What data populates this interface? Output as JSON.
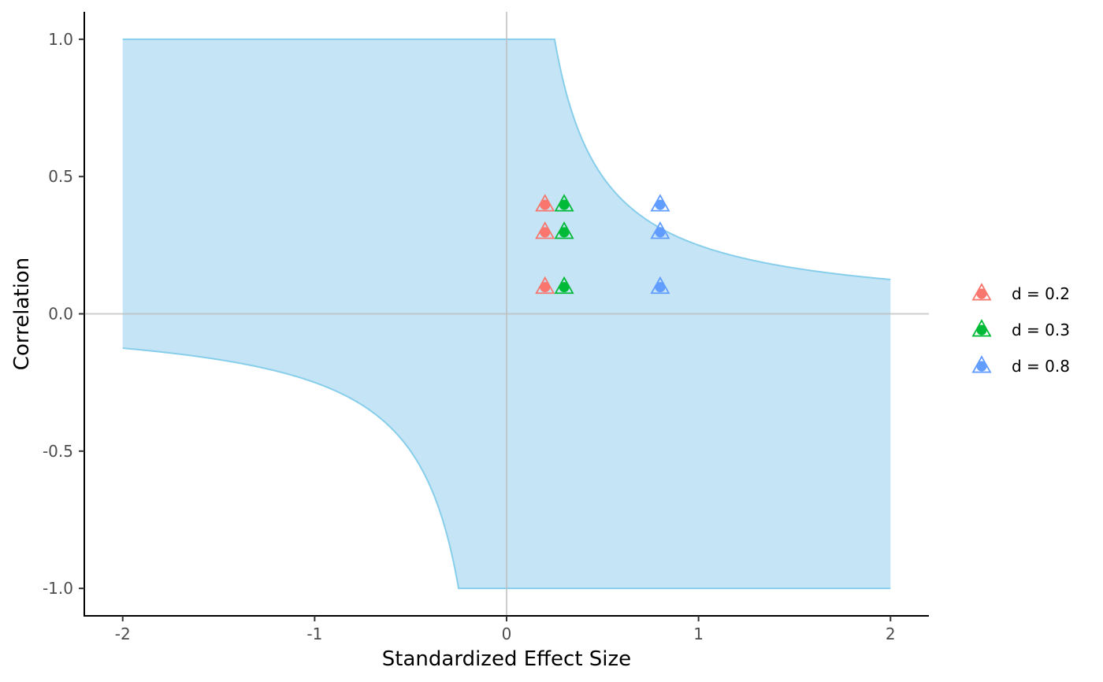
{
  "chart_data": {
    "type": "scatter",
    "xlabel": "Standardized Effect Size",
    "ylabel": "Correlation",
    "xlim": [
      -2.2,
      2.2
    ],
    "ylim": [
      -1.1,
      1.1
    ],
    "x_ticks": [
      -2,
      -1,
      0,
      1,
      2
    ],
    "x_tick_labels": [
      "-2",
      "-1",
      "0",
      "1",
      "2"
    ],
    "y_ticks": [
      -1.0,
      -0.5,
      0.0,
      0.5,
      1.0
    ],
    "y_tick_labels": [
      "-1.0",
      "-0.5",
      "0.0",
      "0.5",
      "1.0"
    ],
    "grid": false,
    "reference_lines": {
      "x": 0,
      "y": 0
    },
    "region": {
      "description": "shaded admissible region bounded by correlation = ±1 and curves r = ±1/(4d)",
      "x_range": [
        -2,
        2
      ],
      "fill_color": "#c5e4f5",
      "line_color": "#87ceeb"
    },
    "legend": {
      "position": "right",
      "entries": [
        "d = 0.2",
        "d = 0.3",
        "d = 0.8"
      ]
    },
    "series": [
      {
        "name": "d = 0.2",
        "color": "#f8766d",
        "x": [
          0.2,
          0.2,
          0.2
        ],
        "y": [
          0.1,
          0.3,
          0.4
        ]
      },
      {
        "name": "d = 0.3",
        "color": "#00ba38",
        "x": [
          0.3,
          0.3,
          0.3
        ],
        "y": [
          0.1,
          0.3,
          0.4
        ]
      },
      {
        "name": "d = 0.8",
        "color": "#619cff",
        "x": [
          0.8,
          0.8,
          0.8
        ],
        "y": [
          0.1,
          0.3,
          0.4
        ]
      }
    ]
  }
}
